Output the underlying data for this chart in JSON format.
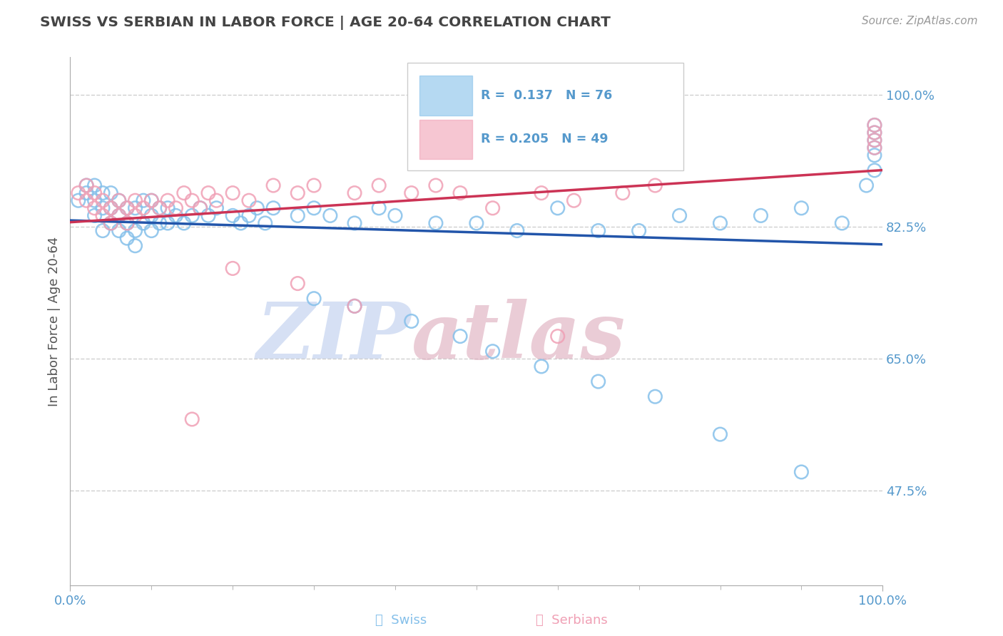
{
  "title": "SWISS VS SERBIAN IN LABOR FORCE | AGE 20-64 CORRELATION CHART",
  "source": "Source: ZipAtlas.com",
  "ylabel": "In Labor Force | Age 20-64",
  "xmin": 0.0,
  "xmax": 1.0,
  "ymin": 0.35,
  "ymax": 1.05,
  "yticks": [
    0.475,
    0.65,
    0.825,
    1.0
  ],
  "ytick_labels": [
    "47.5%",
    "65.0%",
    "82.5%",
    "100.0%"
  ],
  "xticks": [
    0.0,
    1.0
  ],
  "xtick_labels": [
    "0.0%",
    "100.0%"
  ],
  "blue_color": "#85C0EA",
  "pink_color": "#F0A0B5",
  "blue_line_color": "#2255AA",
  "pink_line_color": "#CC3355",
  "blue_line_dashed_color": "#AACCDD",
  "pink_line_dashed_color": "#DDAABB",
  "watermark_zip_color": "#BBCCEE",
  "watermark_atlas_color": "#DDAABB",
  "swiss_R": "0.137",
  "swiss_N": "76",
  "serbian_R": "0.205",
  "serbian_N": "49",
  "background_color": "#FFFFFF",
  "grid_color": "#BBBBBB",
  "title_color": "#444444",
  "legend_text_color": "#5599CC",
  "tick_color": "#5599CC",
  "swiss_x": [
    0.01,
    0.02,
    0.02,
    0.03,
    0.03,
    0.03,
    0.04,
    0.04,
    0.04,
    0.05,
    0.05,
    0.05,
    0.06,
    0.06,
    0.06,
    0.07,
    0.07,
    0.07,
    0.08,
    0.08,
    0.08,
    0.09,
    0.09,
    0.1,
    0.1,
    0.1,
    0.11,
    0.11,
    0.12,
    0.12,
    0.13,
    0.14,
    0.15,
    0.16,
    0.17,
    0.18,
    0.2,
    0.21,
    0.22,
    0.23,
    0.24,
    0.25,
    0.28,
    0.3,
    0.32,
    0.35,
    0.38,
    0.4,
    0.45,
    0.5,
    0.55,
    0.6,
    0.65,
    0.7,
    0.75,
    0.8,
    0.85,
    0.9,
    0.95,
    0.98,
    0.99,
    0.99,
    0.99,
    0.99,
    0.99,
    0.99,
    0.3,
    0.35,
    0.42,
    0.48,
    0.52,
    0.58,
    0.65,
    0.72,
    0.8,
    0.9
  ],
  "swiss_y": [
    0.86,
    0.87,
    0.88,
    0.84,
    0.86,
    0.88,
    0.82,
    0.85,
    0.87,
    0.83,
    0.85,
    0.87,
    0.82,
    0.84,
    0.86,
    0.81,
    0.83,
    0.85,
    0.8,
    0.82,
    0.85,
    0.83,
    0.86,
    0.82,
    0.84,
    0.86,
    0.83,
    0.85,
    0.83,
    0.85,
    0.84,
    0.83,
    0.84,
    0.85,
    0.84,
    0.85,
    0.84,
    0.83,
    0.84,
    0.85,
    0.83,
    0.85,
    0.84,
    0.85,
    0.84,
    0.83,
    0.85,
    0.84,
    0.83,
    0.83,
    0.82,
    0.85,
    0.82,
    0.82,
    0.84,
    0.83,
    0.84,
    0.85,
    0.83,
    0.88,
    0.9,
    0.92,
    0.93,
    0.94,
    0.95,
    0.96,
    0.73,
    0.72,
    0.7,
    0.68,
    0.66,
    0.64,
    0.62,
    0.6,
    0.55,
    0.5
  ],
  "serbian_x": [
    0.01,
    0.02,
    0.02,
    0.03,
    0.03,
    0.04,
    0.04,
    0.05,
    0.05,
    0.06,
    0.06,
    0.07,
    0.07,
    0.08,
    0.08,
    0.09,
    0.1,
    0.11,
    0.12,
    0.13,
    0.14,
    0.15,
    0.16,
    0.17,
    0.18,
    0.2,
    0.22,
    0.25,
    0.28,
    0.3,
    0.35,
    0.38,
    0.42,
    0.45,
    0.48,
    0.52,
    0.58,
    0.62,
    0.68,
    0.72,
    0.99,
    0.99,
    0.99,
    0.99,
    0.2,
    0.28,
    0.35,
    0.6,
    0.15
  ],
  "serbian_y": [
    0.87,
    0.86,
    0.88,
    0.85,
    0.87,
    0.84,
    0.86,
    0.83,
    0.85,
    0.84,
    0.86,
    0.83,
    0.85,
    0.84,
    0.86,
    0.85,
    0.86,
    0.85,
    0.86,
    0.85,
    0.87,
    0.86,
    0.85,
    0.87,
    0.86,
    0.87,
    0.86,
    0.88,
    0.87,
    0.88,
    0.87,
    0.88,
    0.87,
    0.88,
    0.87,
    0.85,
    0.87,
    0.86,
    0.87,
    0.88,
    0.93,
    0.94,
    0.95,
    0.96,
    0.77,
    0.75,
    0.72,
    0.68,
    0.57
  ]
}
